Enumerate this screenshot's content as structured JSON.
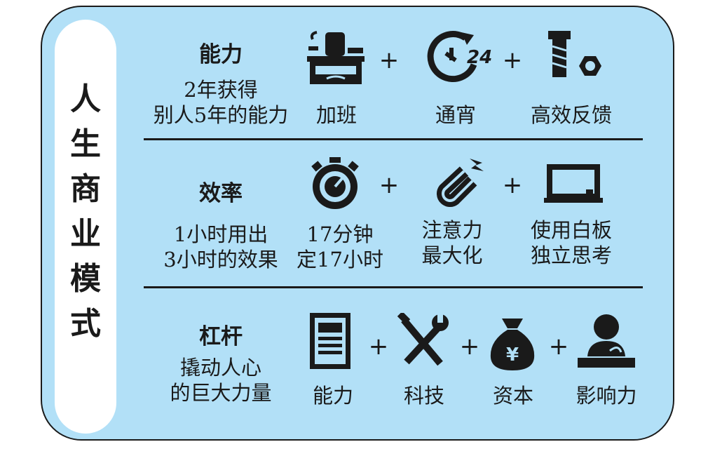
{
  "title_chars": [
    "人",
    "生",
    "商",
    "业",
    "模",
    "式"
  ],
  "rows": [
    {
      "heading": "能力",
      "sub_lines": [
        "2年获得",
        "别人5年的能力"
      ],
      "items": [
        {
          "icon": "office-desk-icon",
          "label": "加班"
        },
        {
          "icon": "clock-24-icon",
          "icon_text": "24",
          "label": "通宵"
        },
        {
          "icon": "bolt-nut-icon",
          "label": "高效反馈"
        }
      ],
      "plus": [
        "+",
        "+"
      ]
    },
    {
      "heading": "效率",
      "sub_lines": [
        "1小时用出",
        "3小时的效果"
      ],
      "items": [
        {
          "icon": "stopwatch-icon",
          "label_lines": [
            "17分钟",
            "定17小时"
          ]
        },
        {
          "icon": "magnet-icon",
          "label_lines": [
            "注意力",
            "最大化"
          ]
        },
        {
          "icon": "whiteboard-icon",
          "label_lines": [
            "使用白板",
            "独立思考"
          ]
        }
      ],
      "plus": [
        "+",
        "+"
      ]
    },
    {
      "heading": "杠杆",
      "sub_lines": [
        "撬动人心",
        "的巨大力量"
      ],
      "items": [
        {
          "icon": "document-icon",
          "label": "能力"
        },
        {
          "icon": "tools-icon",
          "label": "科技"
        },
        {
          "icon": "money-bag-icon",
          "icon_text": "¥",
          "label": "资本"
        },
        {
          "icon": "speaker-person-icon",
          "label": "影响力"
        }
      ],
      "plus": [
        "+",
        "+",
        "+"
      ]
    }
  ],
  "colors": {
    "background": "#b2e0f7",
    "ink": "#1a1a1a",
    "pill": "#ffffff"
  }
}
